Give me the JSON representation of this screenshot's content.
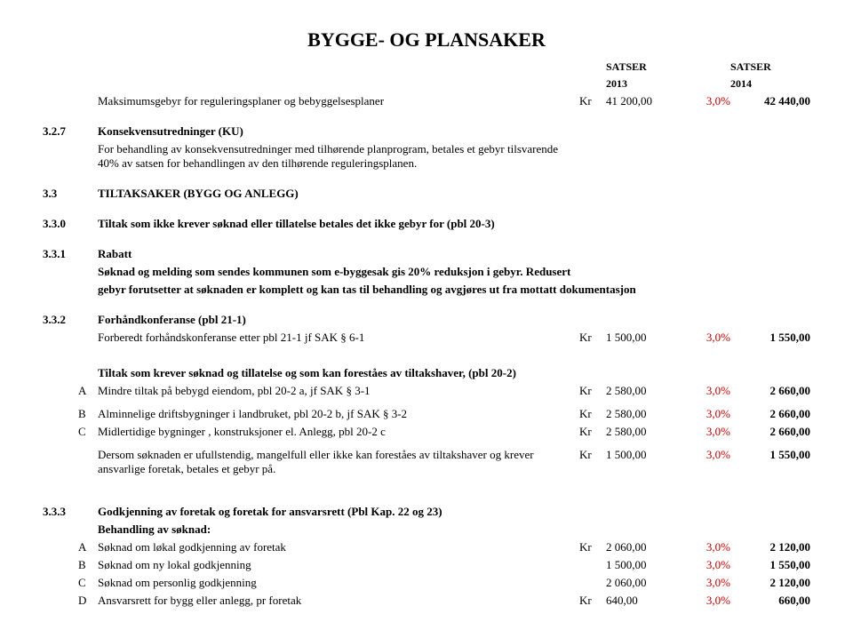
{
  "title": "BYGGE- OG PLANSAKER",
  "headers": {
    "satser": "SATSER",
    "year1": "2013",
    "year2": "2014"
  },
  "colors": {
    "percent": "#c00000",
    "text": "#000000",
    "background": "#ffffff"
  },
  "rows": {
    "r0": {
      "desc": "Maksimumsgebyr for reguleringsplaner og bebyggelsesplaner",
      "unit": "Kr",
      "v2013": "41 200,00",
      "pct": "3,0%",
      "v2014": "42 440,00"
    },
    "r327": {
      "num": "3.2.7",
      "title": "Konsekvensutredninger (KU)",
      "body1": "For behandling av konsekvensutredninger med tilhørende planprogram, betales et gebyr tilsvarende 40% av satsen for behandlingen av den tilhørende reguleringsplanen."
    },
    "r33": {
      "num": "3.3",
      "title": "TILTAKSAKER (BYGG OG ANLEGG)"
    },
    "r330": {
      "num": "3.3.0",
      "title": "Tiltak som ikke krever søknad eller tillatelse betales det ikke gebyr for (pbl 20-3)"
    },
    "r331": {
      "num": "3.3.1",
      "title": "Rabatt",
      "body1": "Søknad og melding som sendes kommunen som e-byggesak gis 20% reduksjon i gebyr. Redusert",
      "body2": "gebyr forutsetter at søknaden er komplett og kan tas til behandling og avgjøres ut fra mottatt dokumentasjon"
    },
    "r332": {
      "num": "3.3.2",
      "title": "Forhåndkonferanse (pbl 21-1)",
      "line": {
        "desc": "Forberedt forhåndskonferanse etter pbl 21-1 jf SAK § 6-1",
        "unit": "Kr",
        "v2013": "1 500,00",
        "pct": "3,0%",
        "v2014": "1 550,00"
      }
    },
    "tiltak": {
      "heading": "Tiltak som krever søknad og tillatelse og som kan foreståes av tiltakshaver, (pbl 20-2)",
      "a": {
        "sub": "A",
        "desc": "Mindre tiltak på bebygd eiendom, pbl 20-2 a,  jf SAK § 3-1",
        "unit": "Kr",
        "v2013": "2 580,00",
        "pct": "3,0%",
        "v2014": "2 660,00"
      },
      "b": {
        "sub": "B",
        "desc": "Alminnelige driftsbygninger i landbruket, pbl 20-2 b, jf SAK § 3-2",
        "unit": "Kr",
        "v2013": "2 580,00",
        "pct": "3,0%",
        "v2014": "2 660,00"
      },
      "c": {
        "sub": "C",
        "desc": "Midlertidige bygninger , konstruksjoner el. Anlegg, pbl 20-2 c",
        "unit": "Kr",
        "v2013": "2 580,00",
        "pct": "3,0%",
        "v2014": "2 660,00"
      },
      "note": {
        "desc": "Dersom søknaden er ufullstendig, mangelfull eller ikke kan foreståes av tiltakshaver og krever ansvarlige foretak, betales et gebyr på.",
        "unit": "Kr",
        "v2013": "1 500,00",
        "pct": "3,0%",
        "v2014": "1 550,00"
      }
    },
    "r333": {
      "num": "3.3.3",
      "title": "Godkjenning av foretak og foretak for ansvarsrett (Pbl Kap. 22 og 23)",
      "sub": "Behandling av søknad:",
      "a": {
        "sub": "A",
        "desc": "Søknad om løkal godkjenning av foretak",
        "unit": "Kr",
        "v2013": "2 060,00",
        "pct": "3,0%",
        "v2014": "2 120,00"
      },
      "b": {
        "sub": "B",
        "desc": "Søknad om ny lokal godkjenning",
        "unit": "",
        "v2013": "1 500,00",
        "pct": "3,0%",
        "v2014": "1 550,00"
      },
      "c": {
        "sub": "C",
        "desc": "Søknad om personlig godkjenning",
        "unit": "",
        "v2013": "2 060,00",
        "pct": "3,0%",
        "v2014": "2 120,00"
      },
      "d": {
        "sub": "D",
        "desc": "Ansvarsrett for bygg eller anlegg, pr foretak",
        "unit": "Kr",
        "v2013": "640,00",
        "pct": "3,0%",
        "v2014": "660,00"
      }
    }
  }
}
